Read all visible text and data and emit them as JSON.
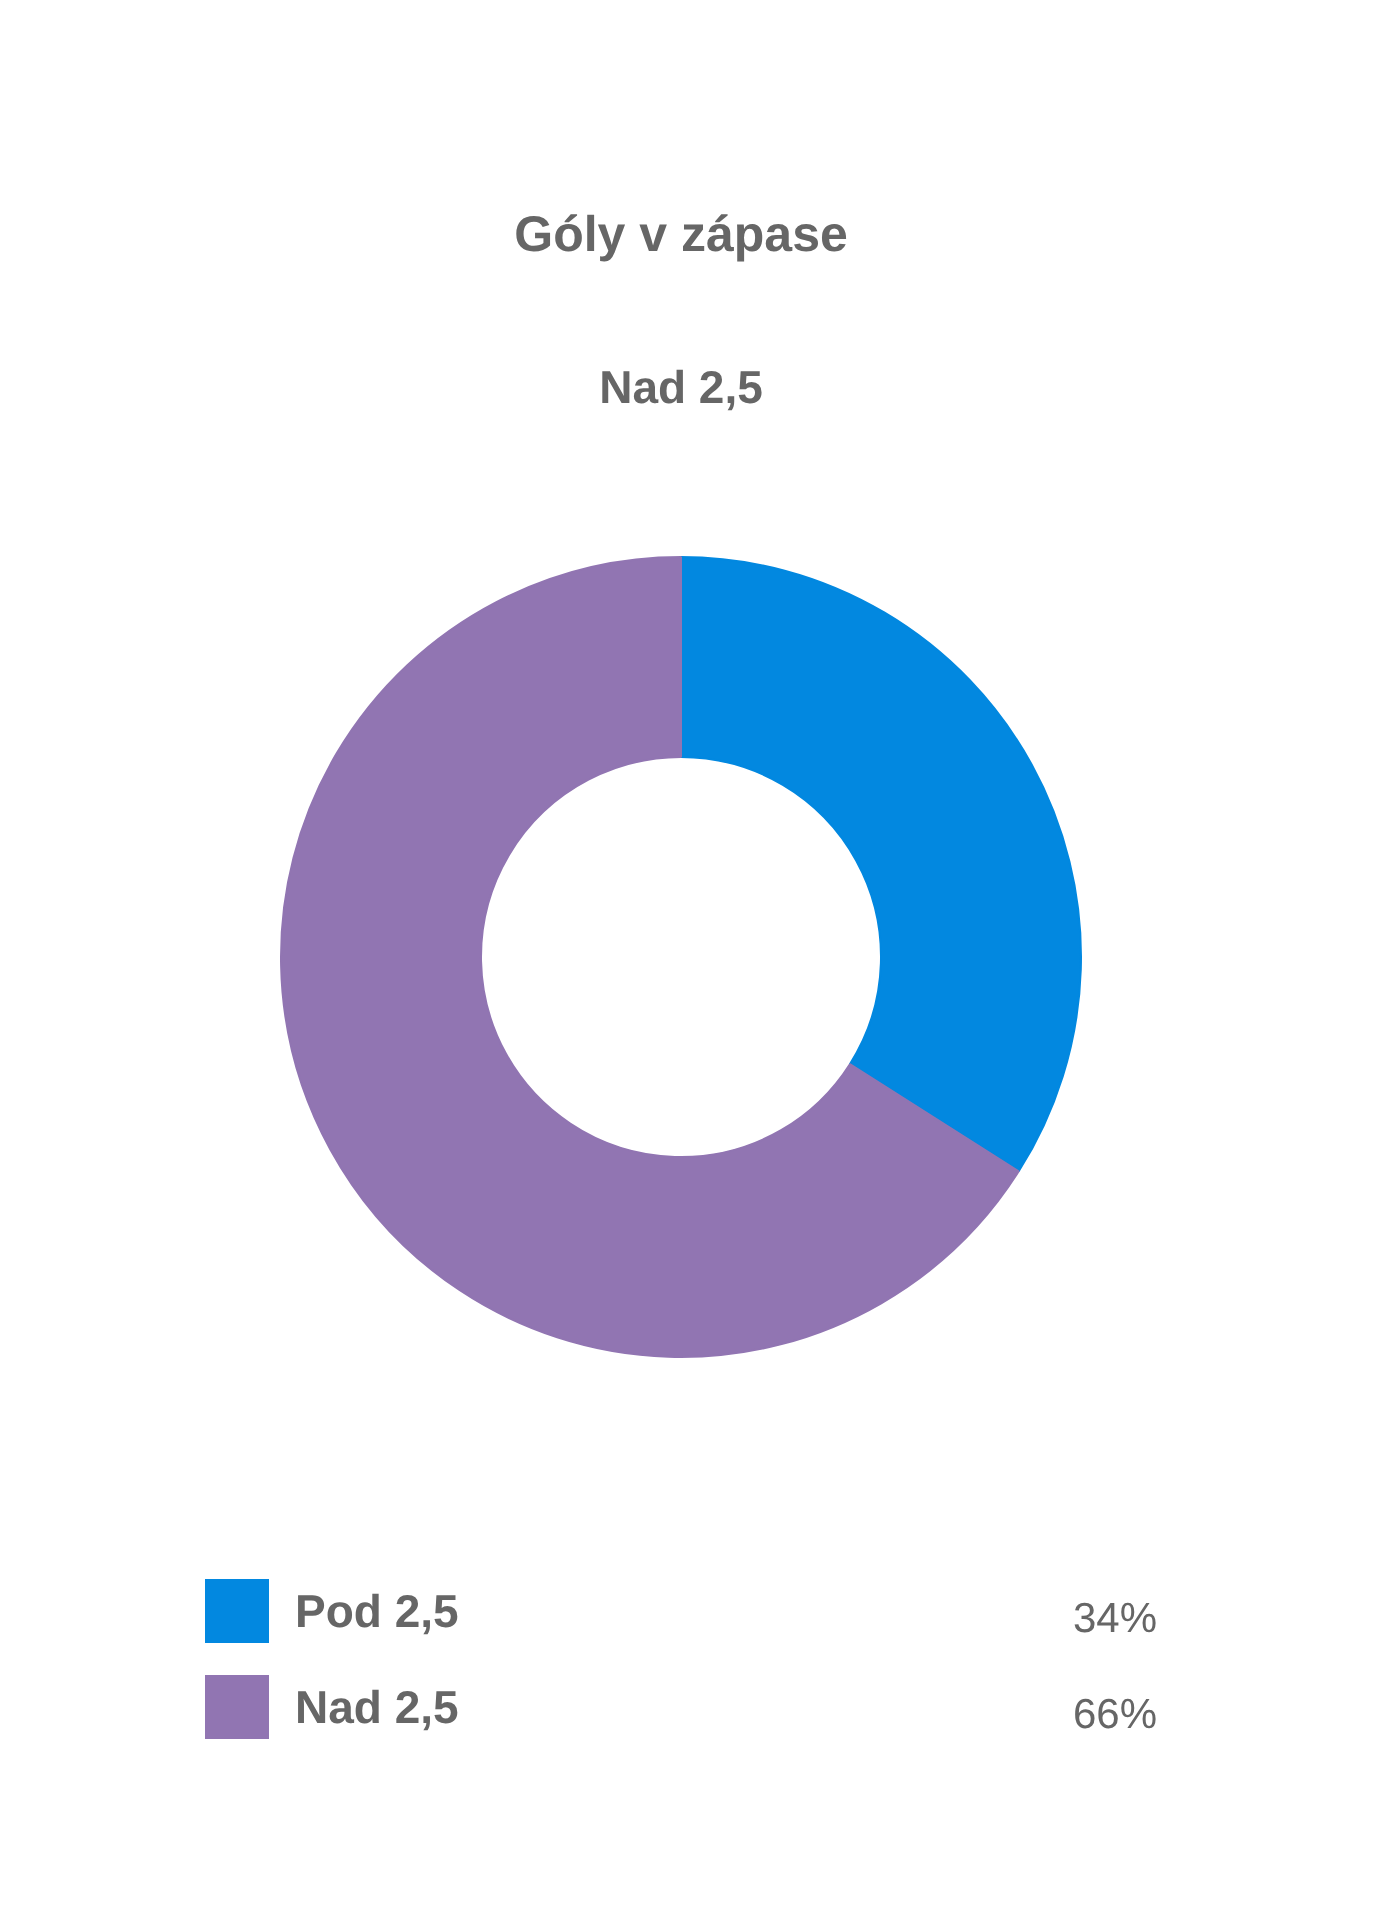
{
  "chart_data": {
    "type": "donut",
    "title": "Góly v zápase",
    "subtitle": "Nad 2,5",
    "categories": [
      "Pod 2,5",
      "Nad 2,5"
    ],
    "values": [
      34,
      66
    ],
    "colors": [
      "#0288e0",
      "#9175b2"
    ],
    "value_labels": [
      "34%",
      "66%"
    ],
    "legend": "bottom"
  }
}
